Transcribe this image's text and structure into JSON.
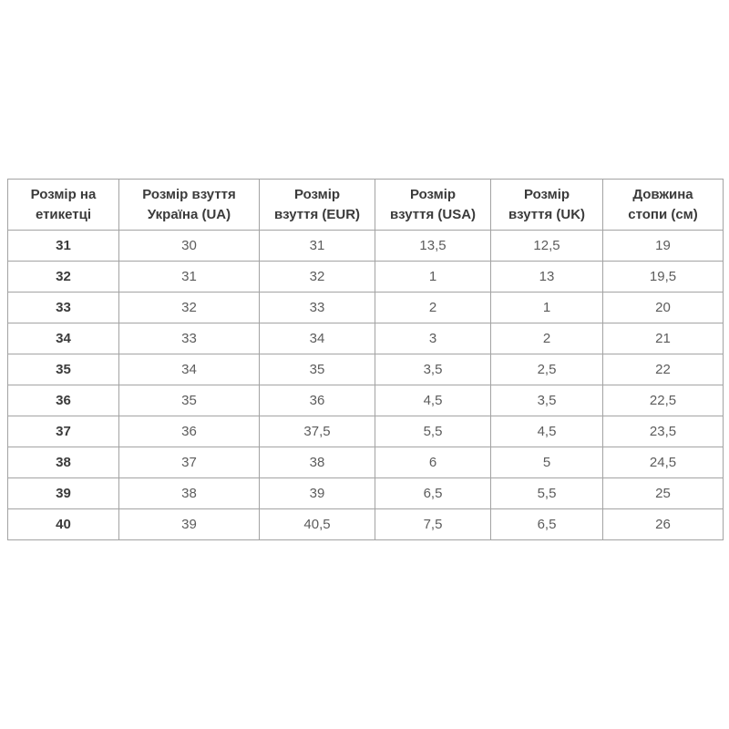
{
  "colors": {
    "page_background": "#ffffff",
    "table_border": "#a3a3a3",
    "header_text": "#3b3b3b",
    "row_label_text": "#3b3b3b",
    "cell_text": "#5c5c5c"
  },
  "chart_data": {
    "type": "table",
    "columns": [
      "Розмір на\nетикетці",
      "Розмір взуття\nУкраїна (UA)",
      "Розмір\nвзуття (EUR)",
      "Розмір\nвзуття (USA)",
      "Розмір\nвзуття (UK)",
      "Довжина\nстопи (см)"
    ],
    "rows": [
      [
        "31",
        "30",
        "31",
        "13,5",
        "12,5",
        "19"
      ],
      [
        "32",
        "31",
        "32",
        "1",
        "13",
        "19,5"
      ],
      [
        "33",
        "32",
        "33",
        "2",
        "1",
        "20"
      ],
      [
        "34",
        "33",
        "34",
        "3",
        "2",
        "21"
      ],
      [
        "35",
        "34",
        "35",
        "3,5",
        "2,5",
        "22"
      ],
      [
        "36",
        "35",
        "36",
        "4,5",
        "3,5",
        "22,5"
      ],
      [
        "37",
        "36",
        "37,5",
        "5,5",
        "4,5",
        "23,5"
      ],
      [
        "38",
        "37",
        "38",
        "6",
        "5",
        "24,5"
      ],
      [
        "39",
        "38",
        "39",
        "6,5",
        "5,5",
        "25"
      ],
      [
        "40",
        "39",
        "40,5",
        "7,5",
        "6,5",
        "26"
      ]
    ]
  }
}
